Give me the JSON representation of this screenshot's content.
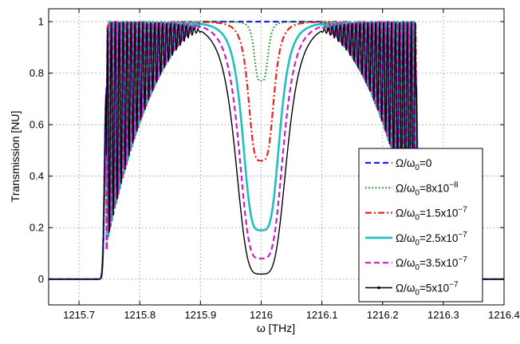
{
  "chart_data": {
    "type": "line",
    "title": "",
    "xlabel": "ω [THz]",
    "ylabel": "Transmission [NU]",
    "xlim": [
      1215.65,
      1216.4
    ],
    "ylim": [
      -0.1,
      1.05
    ],
    "grid": true,
    "legend_position": "lower-right",
    "x_ticks": [
      "1215.7",
      "1215.8",
      "1215.9",
      "1216",
      "1216.1",
      "1216.2",
      "1216.3",
      "1216.4"
    ],
    "x_tick_values": [
      1215.7,
      1215.8,
      1215.9,
      1216.0,
      1216.1,
      1216.2,
      1216.3,
      1216.4
    ],
    "y_ticks": [
      "0",
      "0.2",
      "0.4",
      "0.6",
      "0.8",
      "1"
    ],
    "y_tick_values": [
      0,
      0.2,
      0.4,
      0.6,
      0.8,
      1.0
    ],
    "band": {
      "left_edge": 1215.745,
      "right_edge": 1216.255,
      "center": 1216.0
    },
    "series": [
      {
        "name": "Ω/ω0=0",
        "label": {
          "main": "Ω/ω",
          "sub": "0",
          "rest": "=0",
          "sup": ""
        },
        "color": "#1f1ff0",
        "style": "dashed",
        "center_min": 1.0,
        "notch_halfwidth": 0.0
      },
      {
        "name": "Ω/ω0=8x10-8",
        "label": {
          "main": "Ω/ω",
          "sub": "0",
          "rest": "=8x10",
          "sup": "−8"
        },
        "color": "#128a12",
        "style": "dotted",
        "center_min": 0.77,
        "notch_halfwidth": 0.012
      },
      {
        "name": "Ω/ω0=1.5x10-7",
        "label": {
          "main": "Ω/ω",
          "sub": "0",
          "rest": "=1.5x10",
          "sup": "−7"
        },
        "color": "#e8241c",
        "style": "dashdot",
        "center_min": 0.46,
        "notch_halfwidth": 0.022
      },
      {
        "name": "Ω/ω0=2.5x10-7",
        "label": {
          "main": "Ω/ω",
          "sub": "0",
          "rest": "=2.5x10",
          "sup": "−7"
        },
        "color": "#1fbfbf",
        "style": "solid-thick",
        "center_min": 0.19,
        "notch_halfwidth": 0.032
      },
      {
        "name": "Ω/ω0=3.5x10-7",
        "label": {
          "main": "Ω/ω",
          "sub": "0",
          "rest": "=3.5x10",
          "sup": "−7"
        },
        "color": "#c71fc7",
        "style": "dashed",
        "center_min": 0.08,
        "notch_halfwidth": 0.038
      },
      {
        "name": "Ω/ω0=5x10-7",
        "label": {
          "main": "Ω/ω",
          "sub": "0",
          "rest": "=5x10",
          "sup": "−7"
        },
        "color": "#000000",
        "style": "solid-marker",
        "center_min": 0.02,
        "notch_halfwidth": 0.044
      }
    ]
  }
}
